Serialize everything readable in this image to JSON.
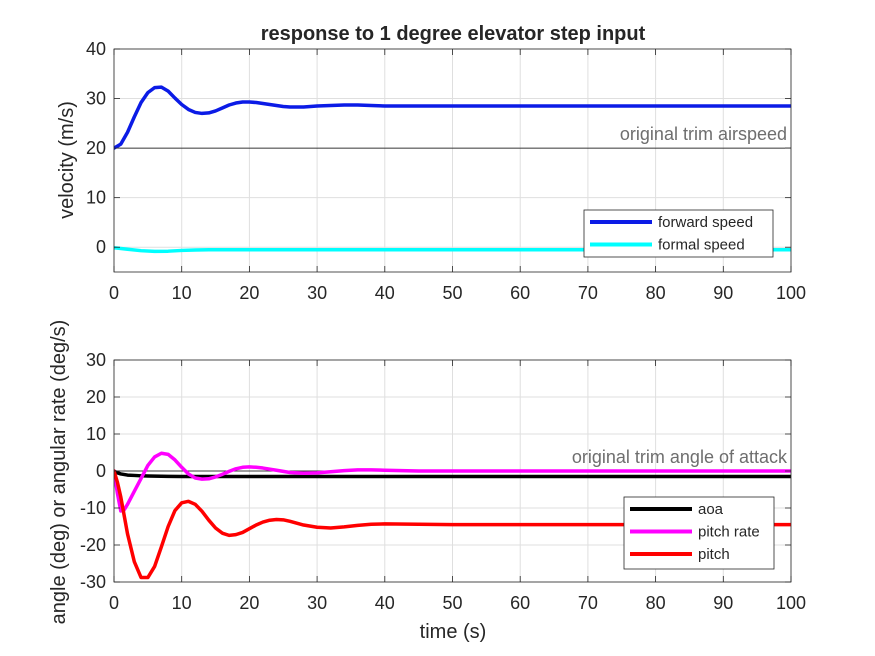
{
  "chart_data": [
    {
      "type": "line",
      "title": "response to 1 degree elevator step input",
      "xlabel": "",
      "ylabel": "velocity (m/s)",
      "xlim": [
        0,
        100
      ],
      "ylim": [
        -5,
        40
      ],
      "xticks": [
        0,
        10,
        20,
        30,
        40,
        50,
        60,
        70,
        80,
        90,
        100
      ],
      "yticks": [
        0,
        10,
        20,
        30,
        40
      ],
      "grid": true,
      "legend_position": "bottom-right",
      "reference_line": {
        "y": 20,
        "label": "original trim airspeed"
      },
      "series": [
        {
          "name": "forward speed",
          "color": "#0b1be6",
          "x": [
            0,
            1,
            2,
            3,
            4,
            5,
            6,
            7,
            8,
            9,
            10,
            11,
            12,
            13,
            14,
            15,
            16,
            17,
            18,
            19,
            20,
            21,
            22,
            23,
            24,
            25,
            26,
            27,
            28,
            30,
            32,
            34,
            36,
            38,
            40,
            45,
            50,
            60,
            70,
            80,
            90,
            100
          ],
          "values": [
            20,
            20.8,
            23.2,
            26.3,
            29.2,
            31.2,
            32.2,
            32.3,
            31.5,
            30.1,
            28.8,
            27.8,
            27.2,
            27.0,
            27.1,
            27.5,
            28.1,
            28.7,
            29.1,
            29.3,
            29.3,
            29.2,
            29.0,
            28.8,
            28.6,
            28.4,
            28.3,
            28.3,
            28.3,
            28.5,
            28.6,
            28.7,
            28.7,
            28.6,
            28.5,
            28.5,
            28.5,
            28.5,
            28.5,
            28.5,
            28.5,
            28.5
          ]
        },
        {
          "name": "formal speed",
          "color": "#00ffff",
          "x": [
            0,
            2,
            4,
            6,
            8,
            10,
            12,
            14,
            16,
            20,
            30,
            40,
            50,
            60,
            70,
            80,
            90,
            100
          ],
          "values": [
            -0.1,
            -0.4,
            -0.7,
            -0.85,
            -0.8,
            -0.65,
            -0.55,
            -0.5,
            -0.5,
            -0.5,
            -0.5,
            -0.5,
            -0.5,
            -0.5,
            -0.5,
            -0.5,
            -0.5,
            -0.5
          ]
        }
      ]
    },
    {
      "type": "line",
      "title": "",
      "xlabel": "time (s)",
      "ylabel": "angle (deg) or angular rate (deg/s)",
      "xlim": [
        0,
        100
      ],
      "ylim": [
        -30,
        30
      ],
      "xticks": [
        0,
        10,
        20,
        30,
        40,
        50,
        60,
        70,
        80,
        90,
        100
      ],
      "yticks": [
        -30,
        -20,
        -10,
        0,
        10,
        20,
        30
      ],
      "grid": true,
      "legend_position": "bottom-right",
      "reference_line": {
        "y": 0,
        "label": "original trim angle of attack"
      },
      "series": [
        {
          "name": "aoa",
          "color": "#000000",
          "x": [
            0,
            0.5,
            1,
            2,
            3,
            4,
            5,
            6,
            8,
            10,
            15,
            20,
            30,
            40,
            60,
            80,
            100
          ],
          "values": [
            0,
            -0.5,
            -0.8,
            -1.1,
            -1.2,
            -1.3,
            -1.35,
            -1.4,
            -1.45,
            -1.5,
            -1.5,
            -1.5,
            -1.5,
            -1.5,
            -1.5,
            -1.5,
            -1.5
          ]
        },
        {
          "name": "pitch rate",
          "color": "#ff00ff",
          "x": [
            0,
            0.5,
            1,
            1.5,
            2,
            3,
            4,
            5,
            6,
            7,
            8,
            9,
            10,
            11,
            12,
            13,
            14,
            15,
            16,
            17,
            18,
            19,
            20,
            21,
            22,
            24,
            26,
            28,
            30,
            32,
            34,
            36,
            38,
            40,
            45,
            50,
            60,
            70,
            80,
            90,
            100
          ],
          "values": [
            0,
            -6,
            -10.8,
            -10.5,
            -9,
            -5.5,
            -2,
            1.5,
            3.8,
            4.8,
            4.5,
            3.0,
            1.0,
            -0.8,
            -1.9,
            -2.2,
            -2.1,
            -1.6,
            -0.9,
            -0.1,
            0.6,
            1.0,
            1.1,
            1.0,
            0.8,
            0.2,
            -0.4,
            -0.6,
            -0.5,
            -0.2,
            0.1,
            0.3,
            0.3,
            0.2,
            0,
            0,
            0,
            0,
            0,
            0,
            0
          ]
        },
        {
          "name": "pitch",
          "color": "#ff0000",
          "x": [
            0,
            0.5,
            1,
            1.5,
            2,
            3,
            4,
            5,
            6,
            7,
            8,
            9,
            10,
            11,
            12,
            13,
            14,
            15,
            16,
            17,
            18,
            19,
            20,
            21,
            22,
            23,
            24,
            25,
            26,
            27,
            28,
            30,
            32,
            34,
            36,
            38,
            40,
            45,
            50,
            60,
            70,
            80,
            90,
            100
          ],
          "values": [
            0,
            -3,
            -7,
            -12,
            -17,
            -24.5,
            -28.8,
            -28.8,
            -25.8,
            -20.5,
            -15,
            -10.7,
            -8.6,
            -8.2,
            -9.0,
            -10.9,
            -13.3,
            -15.4,
            -16.8,
            -17.4,
            -17.2,
            -16.6,
            -15.6,
            -14.6,
            -13.8,
            -13.3,
            -13.1,
            -13.2,
            -13.6,
            -14.1,
            -14.6,
            -15.2,
            -15.4,
            -15.1,
            -14.7,
            -14.4,
            -14.3,
            -14.4,
            -14.5,
            -14.5,
            -14.5,
            -14.5,
            -14.5,
            -14.5
          ]
        }
      ]
    }
  ]
}
